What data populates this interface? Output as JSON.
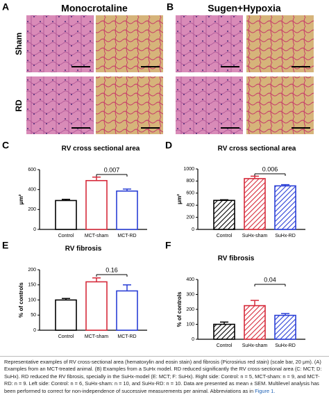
{
  "histology": {
    "panels": [
      {
        "label": "A",
        "title": "Monocrotaline"
      },
      {
        "label": "B",
        "title": "Sugen+Hypoxia"
      }
    ],
    "rows": [
      "Sham",
      "RD"
    ]
  },
  "chart_data": [
    {
      "type": "bar",
      "label": "C",
      "title": "RV cross sectional area",
      "ylabel": "μm²",
      "categories": [
        "Control",
        "MCT-sham",
        "MCT-RD"
      ],
      "values": [
        290,
        490,
        385
      ],
      "errors": [
        12,
        35,
        20
      ],
      "colors": [
        "#000000",
        "#d62a3a",
        "#2a3fd6"
      ],
      "hatched": false,
      "ylim": [
        0,
        600
      ],
      "yticks": [
        0,
        200,
        400,
        600
      ],
      "annotation": 0.007
    },
    {
      "type": "bar",
      "label": "D",
      "title": "RV cross sectional area",
      "ylabel": "μm²",
      "categories": [
        "Control",
        "SuHx-sham",
        "SuHx-RD"
      ],
      "values": [
        480,
        840,
        720
      ],
      "errors": [
        10,
        40,
        20
      ],
      "colors": [
        "#000000",
        "#d62a3a",
        "#2a3fd6"
      ],
      "hatched": true,
      "ylim": [
        0,
        1000
      ],
      "yticks": [
        0,
        200,
        400,
        600,
        800,
        1000
      ],
      "annotation": 0.006
    },
    {
      "type": "bar",
      "label": "E",
      "title": "RV fibrosis",
      "ylabel": "% of controls",
      "categories": [
        "Control",
        "MCT-sham",
        "MCT-RD"
      ],
      "values": [
        100,
        160,
        130
      ],
      "errors": [
        5,
        13,
        20
      ],
      "colors": [
        "#000000",
        "#d62a3a",
        "#2a3fd6"
      ],
      "hatched": false,
      "ylim": [
        0,
        200
      ],
      "yticks": [
        0,
        50,
        100,
        150,
        200
      ],
      "annotation": 0.16
    },
    {
      "type": "bar",
      "label": "F",
      "title": "RV fibrosis",
      "ylabel": "% of controls",
      "categories": [
        "Control",
        "SuHx-sham",
        "SuHx-RD"
      ],
      "values": [
        100,
        225,
        160
      ],
      "errors": [
        15,
        35,
        12
      ],
      "colors": [
        "#000000",
        "#d62a3a",
        "#2a3fd6"
      ],
      "hatched": true,
      "ylim": [
        0,
        400
      ],
      "yticks": [
        0,
        100,
        200,
        300,
        400
      ],
      "annotation": 0.04
    }
  ],
  "caption": {
    "text": "Representative examples of RV cross-sectional area (hematoxylin and eosin stain) and fibrosis (Picrosirius red stain) (scale bar, 20 μm). (A) Examples from an MCT-treated animal. (B) Examples from a SuHx model. RD reduced significantly the RV cross-sectional area (C: MCT; D: SuHx). RD reduced the RV fibrosis, specially in the SuHx-model (E: MCT; F: SuHx). Right side: Control: n = 5, MCT-sham: n = 9, and MCT-RD: n = 9. Left side: Control: n = 6, SuHx-sham: n = 10, and SuHx-RD: n = 10. Data are presented as mean ± SEM. Multilevel analysis has been performed to correct for non-independence of successive measurements per animal. Abbreviations as in ",
    "link": "Figure 1."
  }
}
